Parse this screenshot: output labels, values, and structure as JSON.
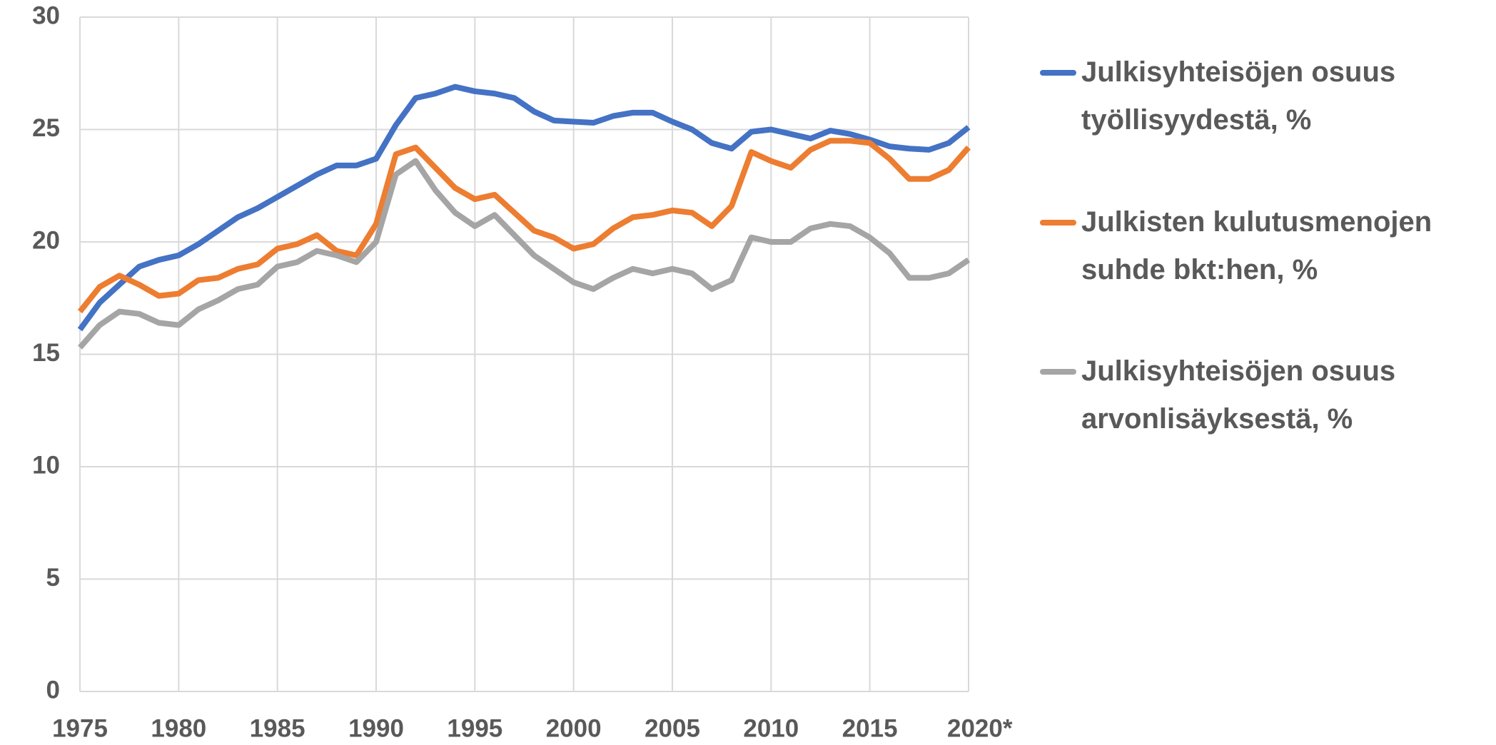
{
  "chart_data": {
    "type": "line",
    "x": [
      1975,
      1976,
      1977,
      1978,
      1979,
      1980,
      1981,
      1982,
      1983,
      1984,
      1985,
      1986,
      1987,
      1988,
      1989,
      1990,
      1991,
      1992,
      1993,
      1994,
      1995,
      1996,
      1997,
      1998,
      1999,
      2000,
      2001,
      2002,
      2003,
      2004,
      2005,
      2006,
      2007,
      2008,
      2009,
      2010,
      2011,
      2012,
      2013,
      2014,
      2015,
      2016,
      2017,
      2018,
      2019,
      2020
    ],
    "series": [
      {
        "name": "Julkisyhteisöjen osuus työllisyydestä, %",
        "color": "#4472c4",
        "values": [
          16.1,
          17.3,
          18.1,
          18.9,
          19.2,
          19.4,
          19.9,
          20.5,
          21.1,
          21.5,
          22.0,
          22.5,
          23.0,
          23.4,
          23.4,
          23.7,
          25.2,
          26.4,
          26.6,
          26.9,
          26.7,
          26.6,
          26.4,
          25.8,
          25.4,
          25.35,
          25.3,
          25.6,
          25.75,
          25.75,
          25.35,
          25.0,
          24.4,
          24.15,
          24.9,
          25.0,
          24.8,
          24.6,
          24.95,
          24.8,
          24.55,
          24.25,
          24.15,
          24.1,
          24.4,
          25.1
        ]
      },
      {
        "name": "Julkisten kulutusmenojen suhde bkt:hen, %",
        "color": "#ed7d31",
        "values": [
          16.9,
          18.0,
          18.5,
          18.1,
          17.6,
          17.7,
          18.3,
          18.4,
          18.8,
          19.0,
          19.7,
          19.9,
          20.3,
          19.6,
          19.4,
          20.8,
          23.9,
          24.2,
          23.3,
          22.4,
          21.9,
          22.1,
          21.3,
          20.5,
          20.2,
          19.7,
          19.9,
          20.6,
          21.1,
          21.2,
          21.4,
          21.3,
          20.7,
          21.6,
          24.0,
          23.6,
          23.3,
          24.1,
          24.5,
          24.5,
          24.4,
          23.7,
          22.8,
          22.8,
          23.2,
          24.2
        ]
      },
      {
        "name": "Julkisyhteisöjen osuus arvonlisäyksestä, %",
        "color": "#a5a5a5",
        "values": [
          15.3,
          16.3,
          16.9,
          16.8,
          16.4,
          16.3,
          17.0,
          17.4,
          17.9,
          18.1,
          18.9,
          19.1,
          19.6,
          19.4,
          19.1,
          20.0,
          23.0,
          23.6,
          22.3,
          21.3,
          20.7,
          21.2,
          20.3,
          19.4,
          18.8,
          18.2,
          17.9,
          18.4,
          18.8,
          18.6,
          18.8,
          18.6,
          17.9,
          18.3,
          20.2,
          20.0,
          20.0,
          20.6,
          20.8,
          20.7,
          20.2,
          19.5,
          18.4,
          18.4,
          18.6,
          19.2
        ]
      }
    ],
    "xlim": [
      1975,
      2020
    ],
    "xticks": [
      1975,
      1980,
      1985,
      1990,
      1995,
      2000,
      2005,
      2010,
      2015,
      {
        "value": 2020,
        "label": "2020*"
      }
    ],
    "ylim": [
      0,
      30
    ],
    "yticks": [
      0,
      5,
      10,
      15,
      20,
      25,
      30
    ],
    "grid": true,
    "legend": "right"
  }
}
